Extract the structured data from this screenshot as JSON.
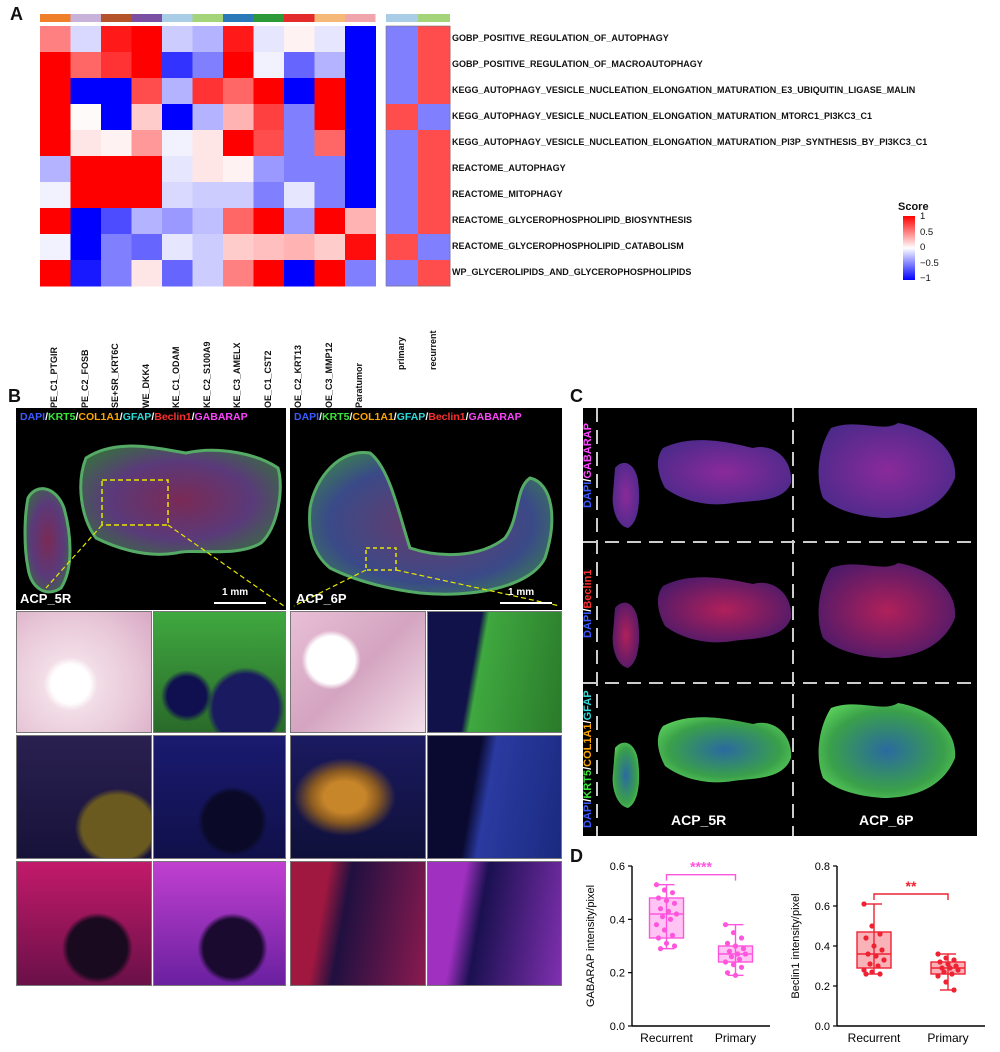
{
  "panel_letters": {
    "a": "A",
    "b": "B",
    "c": "C",
    "d": "D"
  },
  "heatmap": {
    "top_colors": [
      "#f07f2a",
      "#c9b2d9",
      "#b5532a",
      "#7b4fa2",
      "#a9cde6",
      "#a3d47a",
      "#2a79b8",
      "#2d9a3a",
      "#e32b2b",
      "#f5b878",
      "#f0a5ad"
    ],
    "side_colors": [
      "#a9cde6",
      "#a3d47a"
    ],
    "columns": [
      "PE_C1_PTGIR",
      "PE_C2_FOSB",
      "SE+SR_KRT6C",
      "WE_DKK4",
      "KE_C1_ODAM",
      "KE_C2_S100A9",
      "KE_C3_AMELX",
      "OE_C1_CST2",
      "OE_C2_KRT13",
      "OE_C3_MMP12",
      "Paratumor"
    ],
    "side_columns": [
      "primary",
      "recurrent"
    ],
    "rows": [
      "GOBP_POSITIVE_REGULATION_OF_AUTOPHAGY",
      "GOBP_POSITIVE_REGULATION_OF_MACROAUTOPHAGY",
      "KEGG_AUTOPHAGY_VESICLE_NUCLEATION_ELONGATION_MATURATION_E3_UBIQUITIN_LIGASE_MALIN",
      "KEGG_AUTOPHAGY_VESICLE_NUCLEATION_ELONGATION_MATURATION_MTORC1_PI3KC3_C1",
      "KEGG_AUTOPHAGY_VESICLE_NUCLEATION_ELONGATION_MATURATION_PI3P_SYNTHESIS_BY_PI3KC3_C1",
      "REACTOME_AUTOPHAGY",
      "REACTOME_MITOPHAGY",
      "REACTOME_GLYCEROPHOSPHOLIPID_BIOSYNTHESIS",
      "REACTOME_GLYCEROPHOSPHOLIPID_CATABOLISM",
      "WP_GLYCEROLIPIDS_AND_GLYCEROPHOSPHOLIPIDS"
    ],
    "values": [
      [
        0.5,
        -0.15,
        0.9,
        1.0,
        -0.2,
        -0.3,
        0.9,
        -0.1,
        0.05,
        -0.1,
        -1.0
      ],
      [
        1.0,
        0.6,
        0.8,
        1.0,
        -0.8,
        -0.5,
        1.0,
        -0.05,
        -0.6,
        -0.3,
        -1.0
      ],
      [
        1.0,
        -1.0,
        -1.0,
        0.7,
        -0.3,
        0.8,
        0.6,
        1.0,
        -1.0,
        1.0,
        -1.0
      ],
      [
        1.0,
        0.02,
        -1.0,
        0.2,
        -1.0,
        -0.3,
        0.3,
        0.75,
        -0.5,
        1.0,
        -1.0
      ],
      [
        1.0,
        0.1,
        0.05,
        0.4,
        -0.05,
        0.1,
        1.0,
        0.7,
        -0.5,
        0.6,
        -1.0
      ],
      [
        -0.3,
        1.0,
        1.0,
        1.0,
        -0.1,
        0.1,
        0.05,
        -0.4,
        -0.5,
        -0.5,
        -1.0
      ],
      [
        -0.05,
        1.0,
        1.0,
        1.0,
        -0.15,
        -0.2,
        -0.2,
        -0.5,
        -0.1,
        -0.5,
        -1.0
      ],
      [
        1.0,
        -1.0,
        -0.7,
        -0.3,
        -0.4,
        -0.25,
        0.6,
        1.0,
        -0.4,
        1.0,
        0.3
      ],
      [
        -0.05,
        -1.0,
        -0.5,
        -0.6,
        -0.1,
        -0.2,
        0.2,
        0.25,
        0.3,
        0.2,
        0.95
      ],
      [
        1.0,
        -0.9,
        -0.5,
        0.1,
        -0.6,
        -0.2,
        0.5,
        1.0,
        -1.0,
        1.0,
        -0.5
      ]
    ],
    "side_values": [
      [
        -0.5,
        0.7
      ],
      [
        -0.5,
        0.7
      ],
      [
        -0.5,
        0.7
      ],
      [
        0.7,
        -0.5
      ],
      [
        -0.5,
        0.7
      ],
      [
        -0.5,
        0.7
      ],
      [
        -0.5,
        0.7
      ],
      [
        -0.5,
        0.7
      ],
      [
        0.7,
        -0.5
      ],
      [
        -0.5,
        0.7
      ]
    ],
    "legend": {
      "title": "Score",
      "ticks": [
        "1",
        "0.5",
        "0",
        "−0.5",
        "−1"
      ]
    }
  },
  "panel_b": {
    "channels": [
      {
        "text": "DAPI",
        "color": "#3a5aff"
      },
      {
        "text": "/",
        "color": "#ffffff"
      },
      {
        "text": "KRT5",
        "color": "#39e639"
      },
      {
        "text": "/",
        "color": "#ffffff"
      },
      {
        "text": "COL1A1",
        "color": "#ffa500"
      },
      {
        "text": "/",
        "color": "#ffffff"
      },
      {
        "text": "GFAP",
        "color": "#2fd8d8"
      },
      {
        "text": "/",
        "color": "#ffffff"
      },
      {
        "text": "Beclin1",
        "color": "#ff3030"
      },
      {
        "text": "/",
        "color": "#ffffff"
      },
      {
        "text": "GABARAP",
        "color": "#ff44ff"
      }
    ],
    "left_sample": "ACP_5R",
    "right_sample": "ACP_6P",
    "scale": "1 mm"
  },
  "panel_c": {
    "rows": [
      [
        {
          "text": "DAPI",
          "color": "#3a5aff"
        },
        {
          "text": "/",
          "color": "#ffffff"
        },
        {
          "text": "GABARAP",
          "color": "#ff44ff"
        }
      ],
      [
        {
          "text": "DAPI",
          "color": "#3a5aff"
        },
        {
          "text": "/",
          "color": "#ffffff"
        },
        {
          "text": "Beclin1",
          "color": "#ff3030"
        }
      ],
      [
        {
          "text": "DAPI",
          "color": "#3a5aff"
        },
        {
          "text": "/",
          "color": "#ffffff"
        },
        {
          "text": "KRT5",
          "color": "#39e639"
        },
        {
          "text": "/",
          "color": "#ffffff"
        },
        {
          "text": "COL1A1",
          "color": "#ffa500"
        },
        {
          "text": "/",
          "color": "#ffffff"
        },
        {
          "text": "GFAP",
          "color": "#2fd8d8"
        }
      ]
    ],
    "left_sample": "ACP_5R",
    "right_sample": "ACP_6P"
  },
  "chart_data": [
    {
      "type": "box",
      "title": "",
      "ylabel": "GABARAP intensity/pixel",
      "xlabel": "",
      "categories": [
        "Recurrent",
        "Primary"
      ],
      "ylim": [
        0,
        0.6
      ],
      "yticks": [
        "0.0",
        "0.2",
        "0.4",
        "0.6"
      ],
      "color": "#ff55dd",
      "significance": "****",
      "boxes": [
        {
          "min": 0.29,
          "q1": 0.33,
          "median": 0.42,
          "q3": 0.48,
          "max": 0.53
        },
        {
          "min": 0.19,
          "q1": 0.24,
          "median": 0.27,
          "q3": 0.3,
          "max": 0.38
        }
      ],
      "points": [
        [
          0.53,
          0.51,
          0.5,
          0.48,
          0.47,
          0.46,
          0.44,
          0.43,
          0.42,
          0.41,
          0.4,
          0.38,
          0.36,
          0.34,
          0.33,
          0.31,
          0.3,
          0.29
        ],
        [
          0.38,
          0.35,
          0.33,
          0.31,
          0.3,
          0.29,
          0.28,
          0.27,
          0.27,
          0.26,
          0.25,
          0.24,
          0.23,
          0.22,
          0.2,
          0.19
        ]
      ]
    },
    {
      "type": "box",
      "title": "",
      "ylabel": "Beclin1 intensity/pixel",
      "xlabel": "",
      "categories": [
        "Recurrent",
        "Primary"
      ],
      "ylim": [
        0,
        0.8
      ],
      "yticks": [
        "0.0",
        "0.2",
        "0.4",
        "0.6",
        "0.8"
      ],
      "color": "#ee2233",
      "significance": "**",
      "boxes": [
        {
          "min": 0.26,
          "q1": 0.29,
          "median": 0.36,
          "q3": 0.47,
          "max": 0.61
        },
        {
          "min": 0.18,
          "q1": 0.26,
          "median": 0.29,
          "q3": 0.32,
          "max": 0.36
        }
      ],
      "points": [
        [
          0.61,
          0.5,
          0.46,
          0.44,
          0.4,
          0.38,
          0.36,
          0.35,
          0.33,
          0.31,
          0.3,
          0.28,
          0.27,
          0.26,
          0.26
        ],
        [
          0.36,
          0.34,
          0.33,
          0.32,
          0.31,
          0.3,
          0.29,
          0.29,
          0.28,
          0.27,
          0.26,
          0.25,
          0.22,
          0.18
        ]
      ]
    }
  ]
}
